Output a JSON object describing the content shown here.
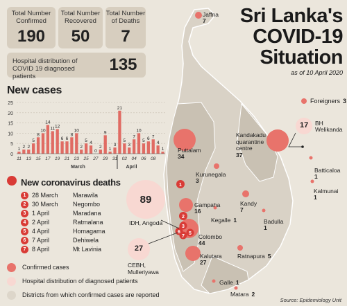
{
  "stats": {
    "confirmed_label": "Total Number Confirmed",
    "confirmed_value": "190",
    "recovered_label": "Total Number Recovered",
    "recovered_value": "50",
    "deaths_label": "Total Number of Deaths",
    "deaths_value": "7",
    "hospital_label": "Hospital distribution of COVID 19 diagnosed patients",
    "hospital_value": "135"
  },
  "title": {
    "line1": "Sri Lanka's",
    "line2": "COVID-19",
    "line3": "Situation",
    "date": "as of 10 April 2020"
  },
  "new_cases_title": "New cases",
  "chart_data": {
    "type": "bar",
    "title": "New cases",
    "categories": [
      "11",
      "12",
      "13",
      "14",
      "15",
      "16",
      "17",
      "18",
      "19",
      "20",
      "21",
      "22",
      "23",
      "24",
      "25",
      "26",
      "27",
      "28",
      "29",
      "30",
      "31",
      "01",
      "02",
      "03",
      "04",
      "05",
      "06",
      "07",
      "08",
      "09",
      "10"
    ],
    "tick_labels": [
      "11",
      "13",
      "15",
      "17",
      "19",
      "21",
      "23",
      "25",
      "27",
      "29",
      "31",
      "02",
      "04",
      "06",
      "08"
    ],
    "month_labels": [
      "March",
      "April"
    ],
    "values": [
      1,
      2,
      2,
      5,
      8,
      10,
      14,
      11,
      12,
      6,
      6,
      8,
      10,
      2,
      5,
      4,
      0,
      2,
      9,
      1,
      3,
      21,
      5,
      3,
      7,
      10,
      5,
      6,
      7,
      4,
      1
    ],
    "ylim": [
      0,
      25
    ],
    "yticks": [
      0,
      5,
      10,
      15,
      20,
      25
    ],
    "bar_color": "#e06b63",
    "grid": true
  },
  "deaths": {
    "title": "New coronavirus deaths",
    "rows": [
      {
        "n": "1",
        "date": "28 March",
        "place": "Marawila"
      },
      {
        "n": "2",
        "date": "30 March",
        "place": "Negombo"
      },
      {
        "n": "3",
        "date": "1 April",
        "place": "Maradana"
      },
      {
        "n": "4",
        "date": "2 April",
        "place": "Ratmalana"
      },
      {
        "n": "5",
        "date": "4 April",
        "place": "Homagama"
      },
      {
        "n": "6",
        "date": "7 April",
        "place": "Dehiwela"
      },
      {
        "n": "7",
        "date": "8 April",
        "place": "Mt Lavinia"
      }
    ]
  },
  "legend": {
    "confirmed": "Confirmed cases",
    "hospital": "Hospital distribution of diagnosed patients",
    "districts": "Districts from which confirmed cases are reported",
    "confirmed_color": "#e8736b",
    "hospital_color": "#f8d8d2",
    "district_color": "#ddd6ca"
  },
  "map": {
    "districts": [
      {
        "name": "Jaffna",
        "count": "7"
      },
      {
        "name": "Puttalam",
        "count": "34"
      },
      {
        "name": "Kurunegala",
        "count": "3"
      },
      {
        "name": "Gampaha",
        "count": "16"
      },
      {
        "name": "Kegalle",
        "count": "1"
      },
      {
        "name": "Kandy",
        "count": "7"
      },
      {
        "name": "Colombo",
        "count": "44"
      },
      {
        "name": "Kalutara",
        "count": "27"
      },
      {
        "name": "Ratnapura",
        "count": "5"
      },
      {
        "name": "Badulla",
        "count": "1"
      },
      {
        "name": "Batticaloa",
        "count": "1"
      },
      {
        "name": "Kalmunai",
        "count": "1"
      },
      {
        "name": "Galle",
        "count": "1"
      },
      {
        "name": "Matara",
        "count": "2"
      }
    ],
    "foreigners_label": "Foreigners",
    "foreigners_count": "3",
    "kandakadu": {
      "label": "Kandakadu quarantine centre",
      "count": "37"
    },
    "bh_label": "BH Welikanda",
    "bh_count": "17",
    "idh_label": "IDH, Angoda",
    "idh_count": "89",
    "cebh_label": "CEBH, Mulleriyawa",
    "cebh_count": "27"
  },
  "source": "Source: Epidemiology Unit"
}
